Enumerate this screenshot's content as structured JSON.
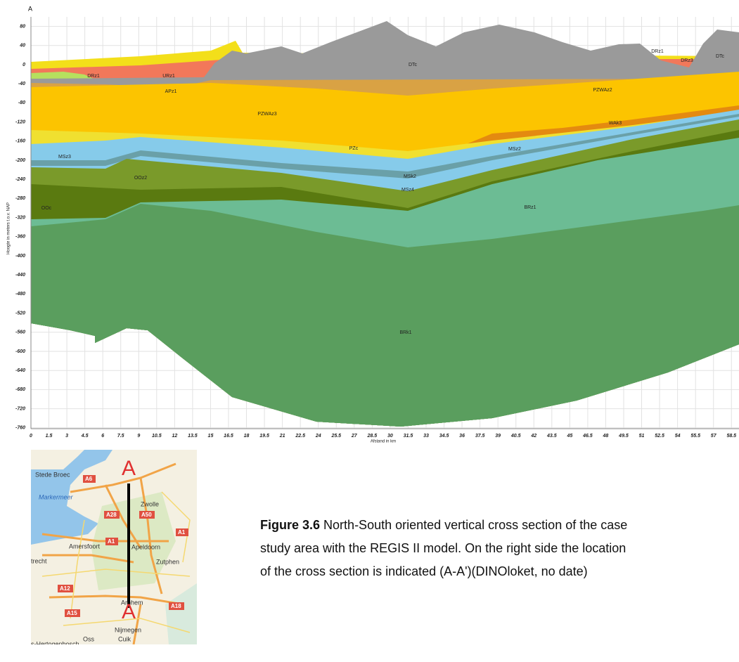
{
  "figure": {
    "corner_label": "A",
    "y_axis_label": "Hoogte in meters t.o.v. NAP",
    "x_axis_label": "Afstand in km",
    "yticks": [
      80,
      40,
      0,
      -40,
      -80,
      -120,
      -160,
      -200,
      -240,
      -280,
      -320,
      -360,
      -400,
      -440,
      -480,
      -520,
      -560,
      -600,
      -640,
      -680,
      -720,
      -760
    ],
    "xticks": [
      0,
      1.5,
      3,
      4.5,
      6,
      7.5,
      9,
      10.5,
      12,
      13.5,
      15,
      16.5,
      18,
      19.5,
      21,
      22.5,
      24,
      25.5,
      27,
      28.5,
      30,
      31.5,
      33,
      34.5,
      36,
      37.5,
      39,
      40.5,
      42,
      43.5,
      45,
      46.5,
      48,
      49.5,
      51,
      52.5,
      54,
      55.5,
      57,
      58.5
    ],
    "layers": [
      "DRz1",
      "URz1",
      "APz1",
      "DTc",
      "DRz1",
      "DRz3",
      "DTc",
      "PZWAz2",
      "PZWAz3",
      "WAk3",
      "PZc",
      "MSz2",
      "MSz3",
      "MSk2",
      "MSz4",
      "OOz2",
      "OOc",
      "BRz1",
      "BRk1"
    ]
  },
  "map": {
    "places": [
      "Stede Broec",
      "Markermeer",
      "Zwolle",
      "Amersfoort",
      "Apeldoorn",
      "Zutphen",
      "trecht",
      "Arnhem",
      "Nijmegen",
      "Oss",
      "Cuik",
      "s-Hertogenbosch"
    ],
    "roads": [
      "A6",
      "A28",
      "A50",
      "A1",
      "A1",
      "A12",
      "A15",
      "A18"
    ],
    "markers": [
      "A",
      "A"
    ]
  },
  "caption": {
    "label": "Figure 3.6",
    "lines": [
      "North-South oriented vertical cross section of the case",
      "study area with the REGIS II model. On the right side the location",
      "of the cross section is indicated (A-A')(DINOloket, no date)"
    ]
  }
}
